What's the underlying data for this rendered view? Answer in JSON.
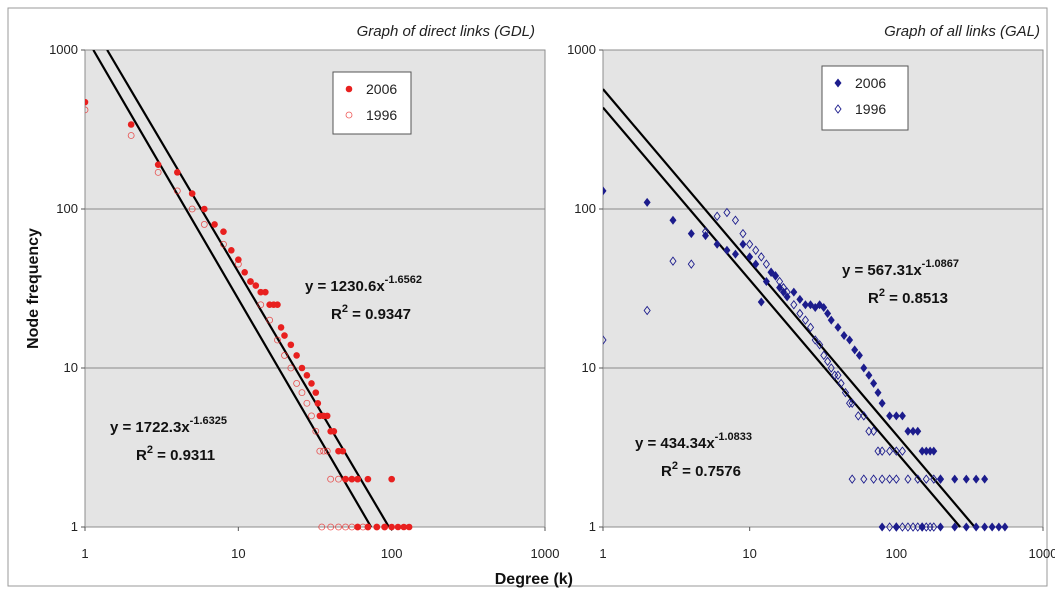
{
  "chart_data": [
    {
      "type": "scatter",
      "title": "Graph of direct links (GDL)",
      "ylabel": "Node frequency",
      "xlabel": "",
      "x_scale": "log",
      "y_scale": "log",
      "xlim": [
        1,
        1000
      ],
      "ylim": [
        1,
        1000
      ],
      "x_ticks": [
        "1",
        "10",
        "100",
        "1000"
      ],
      "y_ticks": [
        "1",
        "10",
        "100",
        "1000"
      ],
      "grid": "horizontal",
      "legend_position": "top-center",
      "series": [
        {
          "name": "2006",
          "color": "#e8201f",
          "marker": "filled-circle",
          "points": [
            [
              1,
              470
            ],
            [
              2,
              340
            ],
            [
              3,
              190
            ],
            [
              4,
              170
            ],
            [
              5,
              125
            ],
            [
              6,
              100
            ],
            [
              7,
              80
            ],
            [
              8,
              72
            ],
            [
              9,
              55
            ],
            [
              10,
              48
            ],
            [
              11,
              40
            ],
            [
              12,
              35
            ],
            [
              13,
              33
            ],
            [
              14,
              30
            ],
            [
              15,
              30
            ],
            [
              16,
              25
            ],
            [
              17,
              25
            ],
            [
              18,
              25
            ],
            [
              19,
              18
            ],
            [
              20,
              16
            ],
            [
              22,
              14
            ],
            [
              24,
              12
            ],
            [
              26,
              10
            ],
            [
              28,
              9
            ],
            [
              30,
              8
            ],
            [
              32,
              7
            ],
            [
              33,
              6
            ],
            [
              34,
              5
            ],
            [
              36,
              5
            ],
            [
              38,
              5
            ],
            [
              40,
              4
            ],
            [
              42,
              4
            ],
            [
              45,
              3
            ],
            [
              48,
              3
            ],
            [
              50,
              2
            ],
            [
              55,
              2
            ],
            [
              60,
              2
            ],
            [
              70,
              2
            ],
            [
              100,
              2
            ],
            [
              60,
              1
            ],
            [
              70,
              1
            ],
            [
              80,
              1
            ],
            [
              90,
              1
            ],
            [
              100,
              1
            ],
            [
              110,
              1
            ],
            [
              120,
              1
            ],
            [
              130,
              1
            ]
          ]
        },
        {
          "name": "1996",
          "color": "#e8201f",
          "marker": "open-circle",
          "points": [
            [
              1,
              420
            ],
            [
              2,
              290
            ],
            [
              3,
              170
            ],
            [
              4,
              130
            ],
            [
              5,
              100
            ],
            [
              6,
              80
            ],
            [
              8,
              60
            ],
            [
              10,
              45
            ],
            [
              12,
              35
            ],
            [
              14,
              25
            ],
            [
              16,
              20
            ],
            [
              18,
              15
            ],
            [
              20,
              12
            ],
            [
              22,
              10
            ],
            [
              24,
              8
            ],
            [
              26,
              7
            ],
            [
              28,
              6
            ],
            [
              30,
              5
            ],
            [
              32,
              4
            ],
            [
              34,
              3
            ],
            [
              36,
              3
            ],
            [
              38,
              3
            ],
            [
              40,
              2
            ],
            [
              45,
              2
            ],
            [
              50,
              2
            ],
            [
              55,
              2
            ],
            [
              60,
              2
            ],
            [
              35,
              1
            ],
            [
              40,
              1
            ],
            [
              45,
              1
            ],
            [
              50,
              1
            ],
            [
              55,
              1
            ],
            [
              60,
              1
            ],
            [
              65,
              1
            ],
            [
              70,
              1
            ],
            [
              80,
              1
            ],
            [
              90,
              1
            ]
          ]
        }
      ],
      "trendlines": [
        {
          "a": 1230.6,
          "b": -1.6562,
          "equation_text": "y = 1230.6x",
          "exponent_text": "-1.6562",
          "r2_label": "R",
          "r2_sup": "2",
          "r2_value_text": " = 0.9347"
        },
        {
          "a": 1722.3,
          "b": -1.6325,
          "equation_text": "y = 1722.3x",
          "exponent_text": "-1.6325",
          "r2_label": "R",
          "r2_sup": "2",
          "r2_value_text": " = 0.9311"
        }
      ]
    },
    {
      "type": "scatter",
      "title": "Graph of all links (GAL)",
      "ylabel": "",
      "xlabel": "Degree (k)",
      "x_scale": "log",
      "y_scale": "log",
      "xlim": [
        1,
        1000
      ],
      "ylim": [
        1,
        1000
      ],
      "x_ticks": [
        "1",
        "10",
        "100",
        "1000"
      ],
      "y_ticks": [
        "1",
        "10",
        "100",
        "1000"
      ],
      "grid": "horizontal",
      "legend_position": "top-center",
      "series": [
        {
          "name": "2006",
          "color": "#1c1c8c",
          "marker": "filled-diamond",
          "points": [
            [
              1,
              130
            ],
            [
              2,
              110
            ],
            [
              3,
              85
            ],
            [
              4,
              70
            ],
            [
              5,
              68
            ],
            [
              6,
              60
            ],
            [
              7,
              55
            ],
            [
              8,
              52
            ],
            [
              9,
              60
            ],
            [
              10,
              50
            ],
            [
              11,
              45
            ],
            [
              12,
              26
            ],
            [
              13,
              35
            ],
            [
              14,
              40
            ],
            [
              15,
              38
            ],
            [
              16,
              32
            ],
            [
              17,
              30
            ],
            [
              18,
              28
            ],
            [
              20,
              30
            ],
            [
              22,
              27
            ],
            [
              24,
              25
            ],
            [
              26,
              25
            ],
            [
              28,
              24
            ],
            [
              30,
              25
            ],
            [
              32,
              24
            ],
            [
              34,
              22
            ],
            [
              36,
              20
            ],
            [
              40,
              18
            ],
            [
              44,
              16
            ],
            [
              48,
              15
            ],
            [
              52,
              13
            ],
            [
              56,
              12
            ],
            [
              60,
              10
            ],
            [
              65,
              9
            ],
            [
              70,
              8
            ],
            [
              75,
              7
            ],
            [
              80,
              6
            ],
            [
              90,
              5
            ],
            [
              100,
              5
            ],
            [
              110,
              5
            ],
            [
              120,
              4
            ],
            [
              130,
              4
            ],
            [
              140,
              4
            ],
            [
              150,
              3
            ],
            [
              160,
              3
            ],
            [
              170,
              3
            ],
            [
              180,
              3
            ],
            [
              200,
              2
            ],
            [
              250,
              2
            ],
            [
              300,
              2
            ],
            [
              350,
              2
            ],
            [
              400,
              2
            ],
            [
              80,
              1
            ],
            [
              100,
              1
            ],
            [
              150,
              1
            ],
            [
              200,
              1
            ],
            [
              250,
              1
            ],
            [
              300,
              1
            ],
            [
              350,
              1
            ],
            [
              400,
              1
            ],
            [
              450,
              1
            ],
            [
              500,
              1
            ],
            [
              550,
              1
            ]
          ]
        },
        {
          "name": "1996",
          "color": "#1c1c8c",
          "marker": "open-diamond",
          "points": [
            [
              1,
              15
            ],
            [
              2,
              23
            ],
            [
              3,
              47
            ],
            [
              4,
              45
            ],
            [
              5,
              72
            ],
            [
              6,
              90
            ],
            [
              7,
              95
            ],
            [
              8,
              85
            ],
            [
              9,
              70
            ],
            [
              10,
              60
            ],
            [
              11,
              55
            ],
            [
              12,
              50
            ],
            [
              13,
              45
            ],
            [
              14,
              40
            ],
            [
              15,
              38
            ],
            [
              16,
              35
            ],
            [
              17,
              32
            ],
            [
              18,
              30
            ],
            [
              20,
              25
            ],
            [
              22,
              22
            ],
            [
              24,
              20
            ],
            [
              26,
              18
            ],
            [
              28,
              15
            ],
            [
              30,
              14
            ],
            [
              32,
              12
            ],
            [
              34,
              11
            ],
            [
              36,
              10
            ],
            [
              38,
              9
            ],
            [
              40,
              9
            ],
            [
              42,
              8
            ],
            [
              45,
              7
            ],
            [
              48,
              6
            ],
            [
              50,
              6
            ],
            [
              55,
              5
            ],
            [
              60,
              5
            ],
            [
              65,
              4
            ],
            [
              70,
              4
            ],
            [
              75,
              3
            ],
            [
              80,
              3
            ],
            [
              90,
              3
            ],
            [
              100,
              3
            ],
            [
              110,
              3
            ],
            [
              50,
              2
            ],
            [
              60,
              2
            ],
            [
              70,
              2
            ],
            [
              80,
              2
            ],
            [
              90,
              2
            ],
            [
              100,
              2
            ],
            [
              120,
              2
            ],
            [
              140,
              2
            ],
            [
              160,
              2
            ],
            [
              180,
              2
            ],
            [
              200,
              2
            ],
            [
              90,
              1
            ],
            [
              100,
              1
            ],
            [
              110,
              1
            ],
            [
              120,
              1
            ],
            [
              130,
              1
            ],
            [
              140,
              1
            ],
            [
              150,
              1
            ],
            [
              160,
              1
            ],
            [
              170,
              1
            ],
            [
              180,
              1
            ]
          ]
        }
      ],
      "trendlines": [
        {
          "a": 567.31,
          "b": -1.0867,
          "equation_text": "y = 567.31x",
          "exponent_text": "-1.0867",
          "r2_label": "R",
          "r2_sup": "2",
          "r2_value_text": " = 0.8513"
        },
        {
          "a": 434.34,
          "b": -1.0833,
          "equation_text": "y = 434.34x",
          "exponent_text": "-1.0833",
          "r2_label": "R",
          "r2_sup": "2",
          "r2_value_text": " = 0.7576"
        }
      ]
    }
  ]
}
